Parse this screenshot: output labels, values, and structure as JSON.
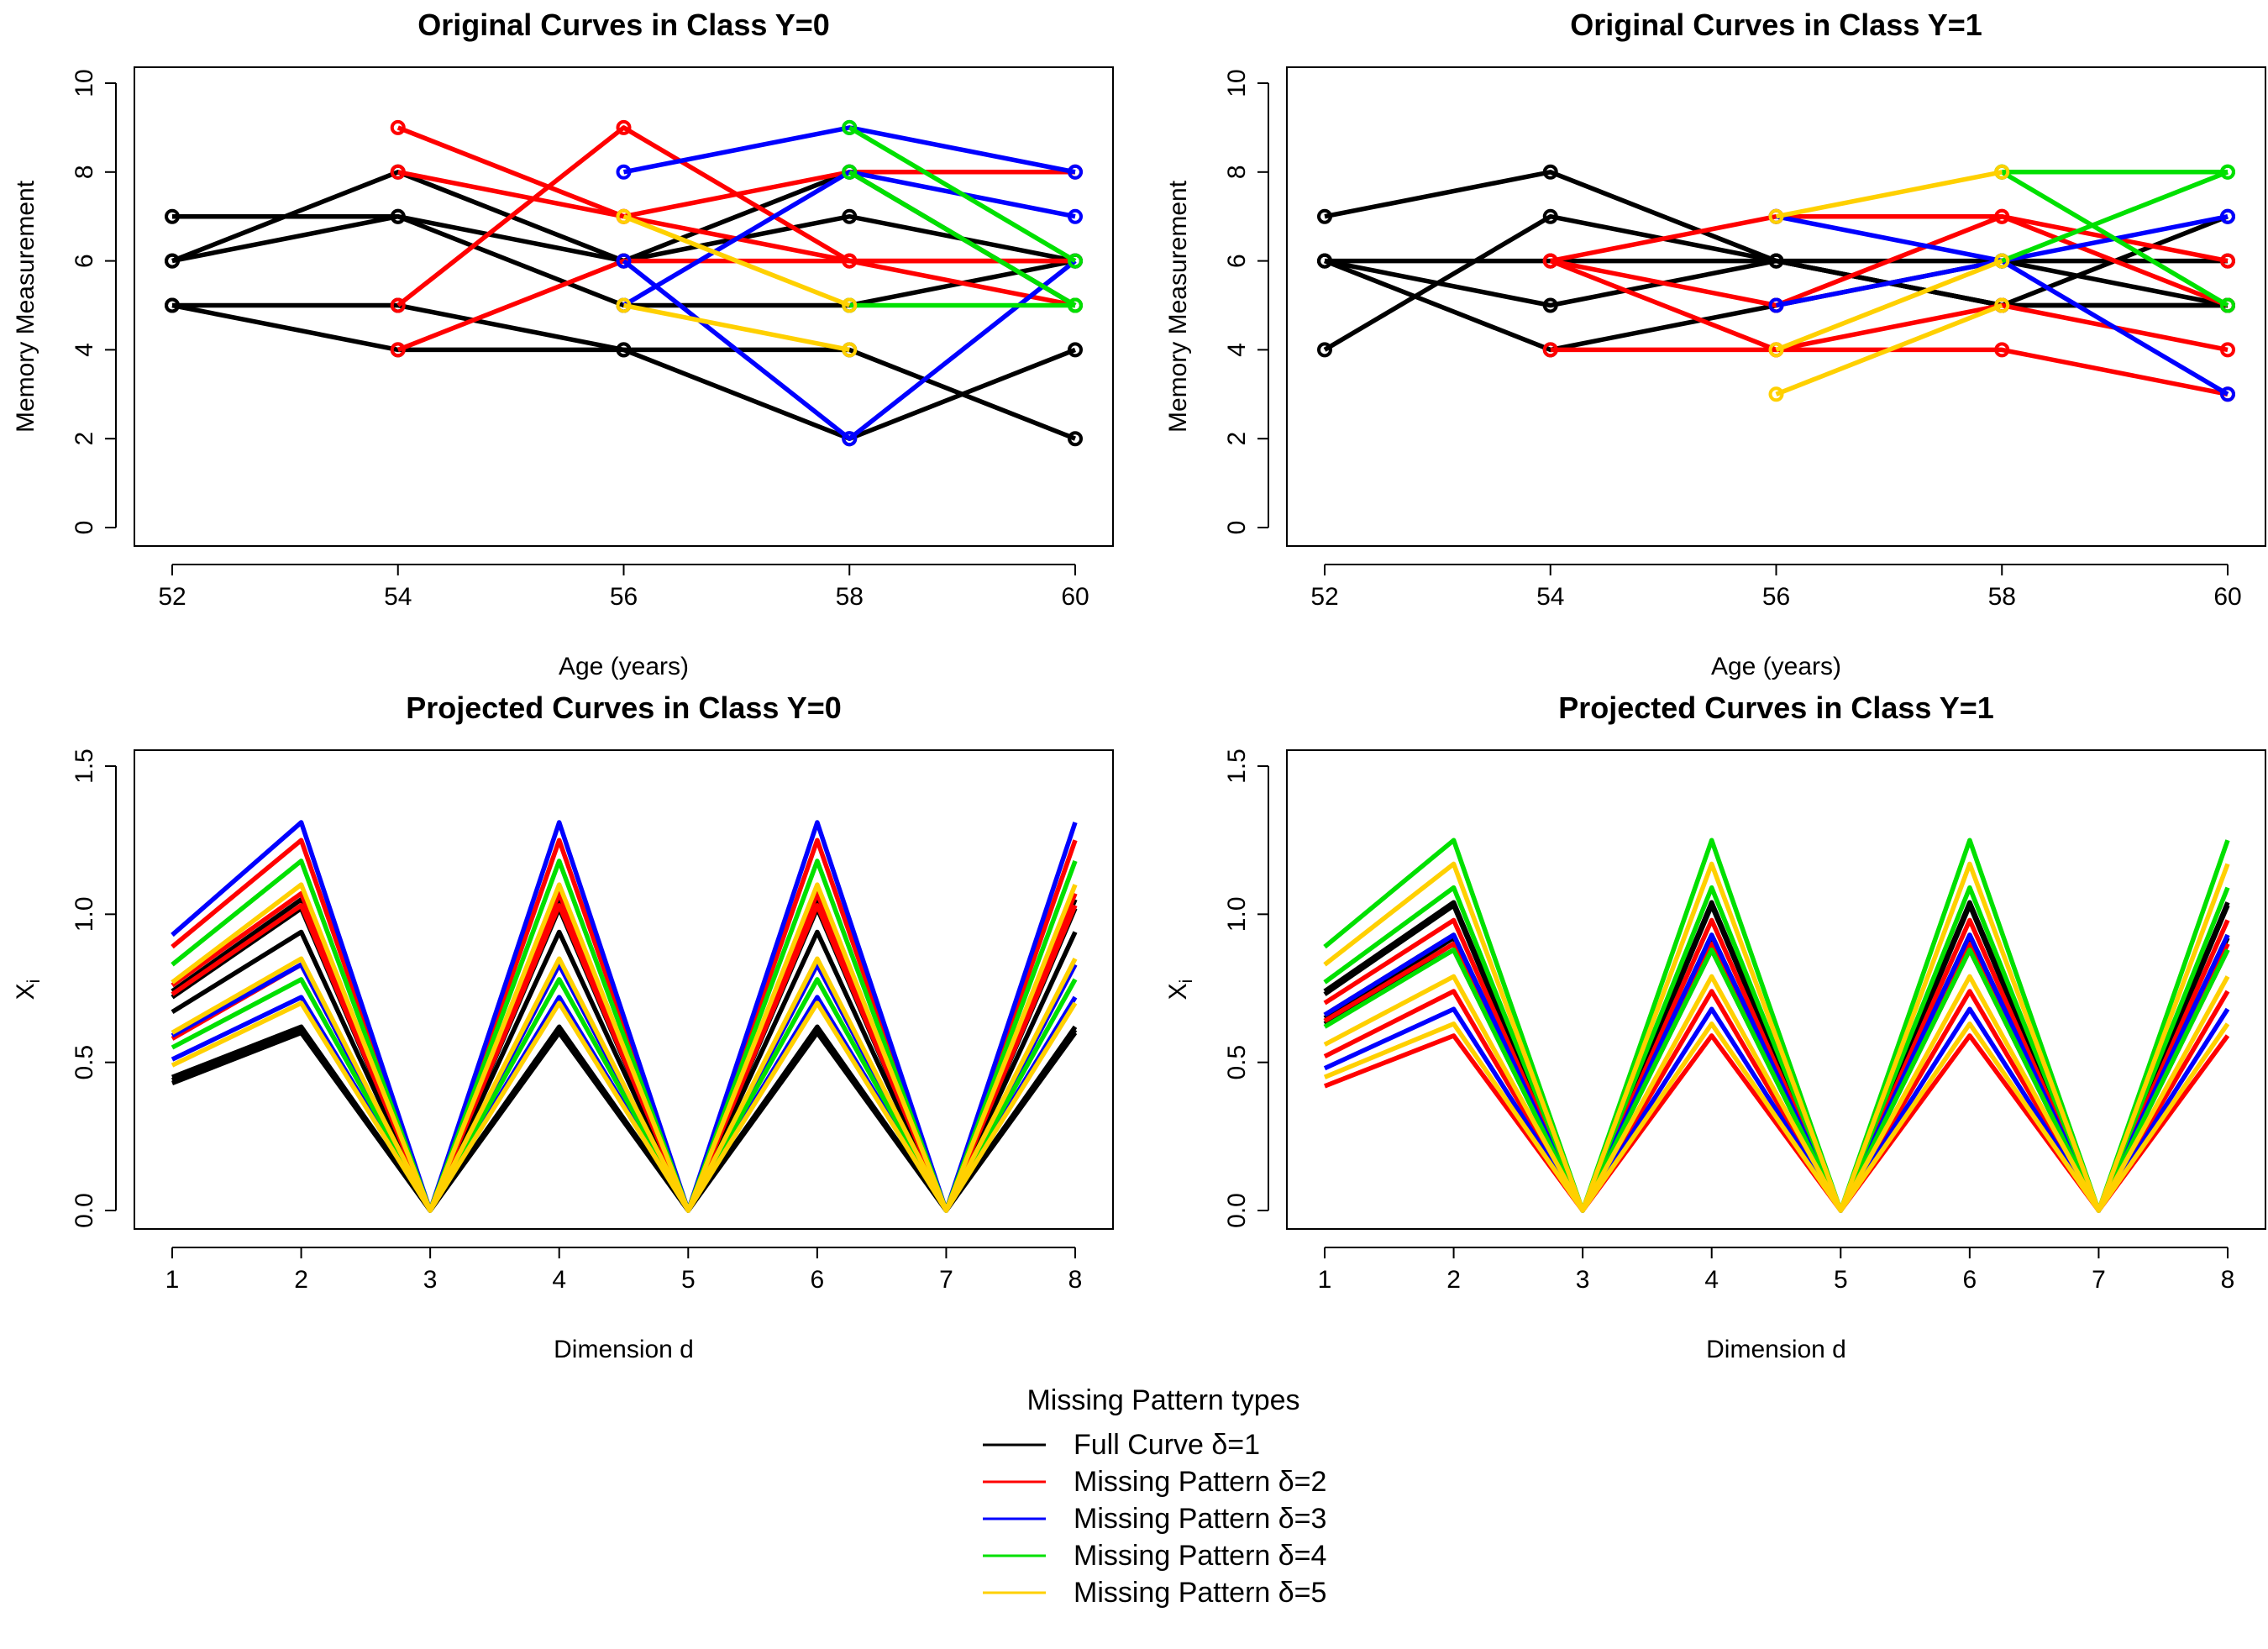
{
  "legend": {
    "title": "Missing Pattern types",
    "items": [
      {
        "label": "Full Curve δ=1",
        "color": "#000000"
      },
      {
        "label": "Missing Pattern δ=2",
        "color": "#ff0000"
      },
      {
        "label": "Missing Pattern δ=3",
        "color": "#0000ff"
      },
      {
        "label": "Missing Pattern δ=4",
        "color": "#00e000"
      },
      {
        "label": "Missing Pattern δ=5",
        "color": "#ffd000"
      }
    ]
  },
  "chart_data": [
    {
      "type": "line",
      "title": "Original Curves in Class Y=0",
      "xlabel": "Age (years)",
      "ylabel": "Memory Measurement",
      "xlim": [
        52,
        60
      ],
      "ylim": [
        0,
        10
      ],
      "xticks": [
        "52",
        "54",
        "56",
        "58",
        "60"
      ],
      "yticks": [
        "0",
        "2",
        "4",
        "6",
        "8",
        "10"
      ],
      "markers": true,
      "series": [
        {
          "name": "Full Curve",
          "pattern": 1,
          "x": [
            52,
            54,
            56,
            58,
            60
          ],
          "values": [
            7,
            7,
            6,
            7,
            6
          ]
        },
        {
          "name": "Full Curve",
          "pattern": 1,
          "x": [
            52,
            54,
            56,
            58,
            60
          ],
          "values": [
            6,
            8,
            6,
            8,
            5
          ]
        },
        {
          "name": "Full Curve",
          "pattern": 1,
          "x": [
            52,
            54,
            56,
            58,
            60
          ],
          "values": [
            6,
            7,
            5,
            5,
            6
          ]
        },
        {
          "name": "Full Curve",
          "pattern": 1,
          "x": [
            52,
            54,
            56,
            58,
            60
          ],
          "values": [
            5,
            5,
            4,
            2,
            4
          ]
        },
        {
          "name": "Full Curve",
          "pattern": 1,
          "x": [
            52,
            54,
            56,
            58,
            60
          ],
          "values": [
            5,
            4,
            4,
            4,
            2
          ]
        },
        {
          "name": "Missing Pattern",
          "pattern": 2,
          "x": [
            54,
            56,
            58,
            60
          ],
          "values": [
            9,
            7,
            8,
            8
          ]
        },
        {
          "name": "Missing Pattern",
          "pattern": 2,
          "x": [
            54,
            56,
            58,
            60
          ],
          "values": [
            8,
            7,
            6,
            5
          ]
        },
        {
          "name": "Missing Pattern",
          "pattern": 2,
          "x": [
            54,
            56,
            58,
            60
          ],
          "values": [
            5,
            9,
            6,
            6
          ]
        },
        {
          "name": "Missing Pattern",
          "pattern": 2,
          "x": [
            54,
            56,
            58,
            60
          ],
          "values": [
            4,
            6,
            6,
            6
          ]
        },
        {
          "name": "Missing Pattern",
          "pattern": 3,
          "x": [
            56,
            58,
            60
          ],
          "values": [
            8,
            9,
            8
          ]
        },
        {
          "name": "Missing Pattern",
          "pattern": 3,
          "x": [
            56,
            58,
            60
          ],
          "values": [
            6,
            2,
            6
          ]
        },
        {
          "name": "Missing Pattern",
          "pattern": 3,
          "x": [
            56,
            58,
            60
          ],
          "values": [
            5,
            8,
            7
          ]
        },
        {
          "name": "Missing Pattern",
          "pattern": 4,
          "x": [
            58,
            60
          ],
          "values": [
            9,
            6
          ]
        },
        {
          "name": "Missing Pattern",
          "pattern": 4,
          "x": [
            58,
            60
          ],
          "values": [
            8,
            5
          ]
        },
        {
          "name": "Missing Pattern",
          "pattern": 4,
          "x": [
            58,
            60
          ],
          "values": [
            5,
            5
          ]
        },
        {
          "name": "Missing Pattern",
          "pattern": 5,
          "x": [
            56,
            58
          ],
          "values": [
            7,
            5
          ]
        },
        {
          "name": "Missing Pattern",
          "pattern": 5,
          "x": [
            56,
            58
          ],
          "values": [
            5,
            4
          ]
        }
      ]
    },
    {
      "type": "line",
      "title": "Original Curves in Class Y=1",
      "xlabel": "Age (years)",
      "ylabel": "Memory Measurement",
      "xlim": [
        52,
        60
      ],
      "ylim": [
        0,
        10
      ],
      "xticks": [
        "52",
        "54",
        "56",
        "58",
        "60"
      ],
      "yticks": [
        "0",
        "2",
        "4",
        "6",
        "8",
        "10"
      ],
      "markers": true,
      "series": [
        {
          "name": "Full Curve",
          "pattern": 1,
          "x": [
            52,
            54,
            56,
            58,
            60
          ],
          "values": [
            7,
            8,
            6,
            5,
            5
          ]
        },
        {
          "name": "Full Curve",
          "pattern": 1,
          "x": [
            52,
            54,
            56,
            58,
            60
          ],
          "values": [
            6,
            6,
            6,
            6,
            6
          ]
        },
        {
          "name": "Full Curve",
          "pattern": 1,
          "x": [
            52,
            54,
            56,
            58,
            60
          ],
          "values": [
            6,
            5,
            6,
            5,
            7
          ]
        },
        {
          "name": "Full Curve",
          "pattern": 1,
          "x": [
            52,
            54,
            56,
            58,
            60
          ],
          "values": [
            4,
            7,
            6,
            5,
            5
          ]
        },
        {
          "name": "Full Curve",
          "pattern": 1,
          "x": [
            52,
            54,
            56,
            58,
            60
          ],
          "values": [
            6,
            4,
            5,
            6,
            5
          ]
        },
        {
          "name": "Missing Pattern",
          "pattern": 2,
          "x": [
            54,
            56,
            58,
            60
          ],
          "values": [
            6,
            7,
            7,
            6
          ]
        },
        {
          "name": "Missing Pattern",
          "pattern": 2,
          "x": [
            54,
            56,
            58,
            60
          ],
          "values": [
            6,
            4,
            5,
            4
          ]
        },
        {
          "name": "Missing Pattern",
          "pattern": 2,
          "x": [
            54,
            56,
            58,
            60
          ],
          "values": [
            4,
            4,
            4,
            3
          ]
        },
        {
          "name": "Missing Pattern",
          "pattern": 2,
          "x": [
            54,
            56,
            58,
            60
          ],
          "values": [
            6,
            5,
            7,
            5
          ]
        },
        {
          "name": "Missing Pattern",
          "pattern": 3,
          "x": [
            56,
            58,
            60
          ],
          "values": [
            7,
            6,
            3
          ]
        },
        {
          "name": "Missing Pattern",
          "pattern": 3,
          "x": [
            56,
            58,
            60
          ],
          "values": [
            5,
            6,
            7
          ]
        },
        {
          "name": "Missing Pattern",
          "pattern": 4,
          "x": [
            58,
            60
          ],
          "values": [
            8,
            8
          ]
        },
        {
          "name": "Missing Pattern",
          "pattern": 4,
          "x": [
            58,
            60
          ],
          "values": [
            8,
            5
          ]
        },
        {
          "name": "Missing Pattern",
          "pattern": 4,
          "x": [
            58,
            60
          ],
          "values": [
            6,
            8
          ]
        },
        {
          "name": "Missing Pattern",
          "pattern": 5,
          "x": [
            56,
            58
          ],
          "values": [
            7,
            8
          ]
        },
        {
          "name": "Missing Pattern",
          "pattern": 5,
          "x": [
            56,
            58
          ],
          "values": [
            4,
            6
          ]
        },
        {
          "name": "Missing Pattern",
          "pattern": 5,
          "x": [
            56,
            58
          ],
          "values": [
            3,
            5
          ]
        }
      ]
    },
    {
      "type": "line",
      "title": "Projected Curves in Class Y=0",
      "xlabel": "Dimension d",
      "ylabel": "Xi",
      "xlim": [
        1,
        8
      ],
      "ylim": [
        0,
        1.5
      ],
      "xticks": [
        "1",
        "2",
        "3",
        "4",
        "5",
        "6",
        "7",
        "8"
      ],
      "yticks": [
        "0.0",
        "0.5",
        "1.0",
        "1.5"
      ],
      "markers": false,
      "peak_dims": [
        2,
        4,
        6,
        8
      ],
      "zero_dims": [
        3,
        5,
        7
      ],
      "series": [
        {
          "pattern": 1,
          "d1": 0.43,
          "peak": 0.6
        },
        {
          "pattern": 1,
          "d1": 0.44,
          "peak": 0.61
        },
        {
          "pattern": 1,
          "d1": 0.45,
          "peak": 0.62
        },
        {
          "pattern": 1,
          "d1": 0.67,
          "peak": 0.94
        },
        {
          "pattern": 1,
          "d1": 0.72,
          "peak": 1.02
        },
        {
          "pattern": 1,
          "d1": 0.74,
          "peak": 1.05
        },
        {
          "pattern": 2,
          "d1": 0.58,
          "peak": 0.83
        },
        {
          "pattern": 2,
          "d1": 0.73,
          "peak": 1.03
        },
        {
          "pattern": 2,
          "d1": 0.76,
          "peak": 1.07
        },
        {
          "pattern": 2,
          "d1": 0.89,
          "peak": 1.25
        },
        {
          "pattern": 3,
          "d1": 0.51,
          "peak": 0.72
        },
        {
          "pattern": 3,
          "d1": 0.59,
          "peak": 0.83
        },
        {
          "pattern": 3,
          "d1": 0.93,
          "peak": 1.31
        },
        {
          "pattern": 4,
          "d1": 0.55,
          "peak": 0.78
        },
        {
          "pattern": 4,
          "d1": 0.83,
          "peak": 1.18
        },
        {
          "pattern": 5,
          "d1": 0.49,
          "peak": 0.7
        },
        {
          "pattern": 5,
          "d1": 0.6,
          "peak": 0.85
        },
        {
          "pattern": 5,
          "d1": 0.77,
          "peak": 1.1
        }
      ]
    },
    {
      "type": "line",
      "title": "Projected Curves in Class Y=1",
      "xlabel": "Dimension d",
      "ylabel": "Xi",
      "xlim": [
        1,
        8
      ],
      "ylim": [
        0,
        1.5
      ],
      "xticks": [
        "1",
        "2",
        "3",
        "4",
        "5",
        "6",
        "7",
        "8"
      ],
      "yticks": [
        "0.0",
        "0.5",
        "1.0",
        "1.5"
      ],
      "markers": false,
      "peak_dims": [
        2,
        4,
        6,
        8
      ],
      "zero_dims": [
        3,
        5,
        7
      ],
      "series": [
        {
          "pattern": 1,
          "d1": 0.63,
          "peak": 0.88
        },
        {
          "pattern": 1,
          "d1": 0.64,
          "peak": 0.9
        },
        {
          "pattern": 1,
          "d1": 0.65,
          "peak": 0.92
        },
        {
          "pattern": 1,
          "d1": 0.66,
          "peak": 0.93
        },
        {
          "pattern": 1,
          "d1": 0.73,
          "peak": 1.03
        },
        {
          "pattern": 1,
          "d1": 0.74,
          "peak": 1.04
        },
        {
          "pattern": 2,
          "d1": 0.42,
          "peak": 0.59
        },
        {
          "pattern": 2,
          "d1": 0.52,
          "peak": 0.74
        },
        {
          "pattern": 2,
          "d1": 0.64,
          "peak": 0.9
        },
        {
          "pattern": 2,
          "d1": 0.7,
          "peak": 0.98
        },
        {
          "pattern": 3,
          "d1": 0.48,
          "peak": 0.68
        },
        {
          "pattern": 3,
          "d1": 0.66,
          "peak": 0.93
        },
        {
          "pattern": 4,
          "d1": 0.62,
          "peak": 0.88
        },
        {
          "pattern": 4,
          "d1": 0.77,
          "peak": 1.09
        },
        {
          "pattern": 4,
          "d1": 0.89,
          "peak": 1.25
        },
        {
          "pattern": 5,
          "d1": 0.45,
          "peak": 0.63
        },
        {
          "pattern": 5,
          "d1": 0.56,
          "peak": 0.79
        },
        {
          "pattern": 5,
          "d1": 0.83,
          "peak": 1.17
        }
      ]
    }
  ]
}
